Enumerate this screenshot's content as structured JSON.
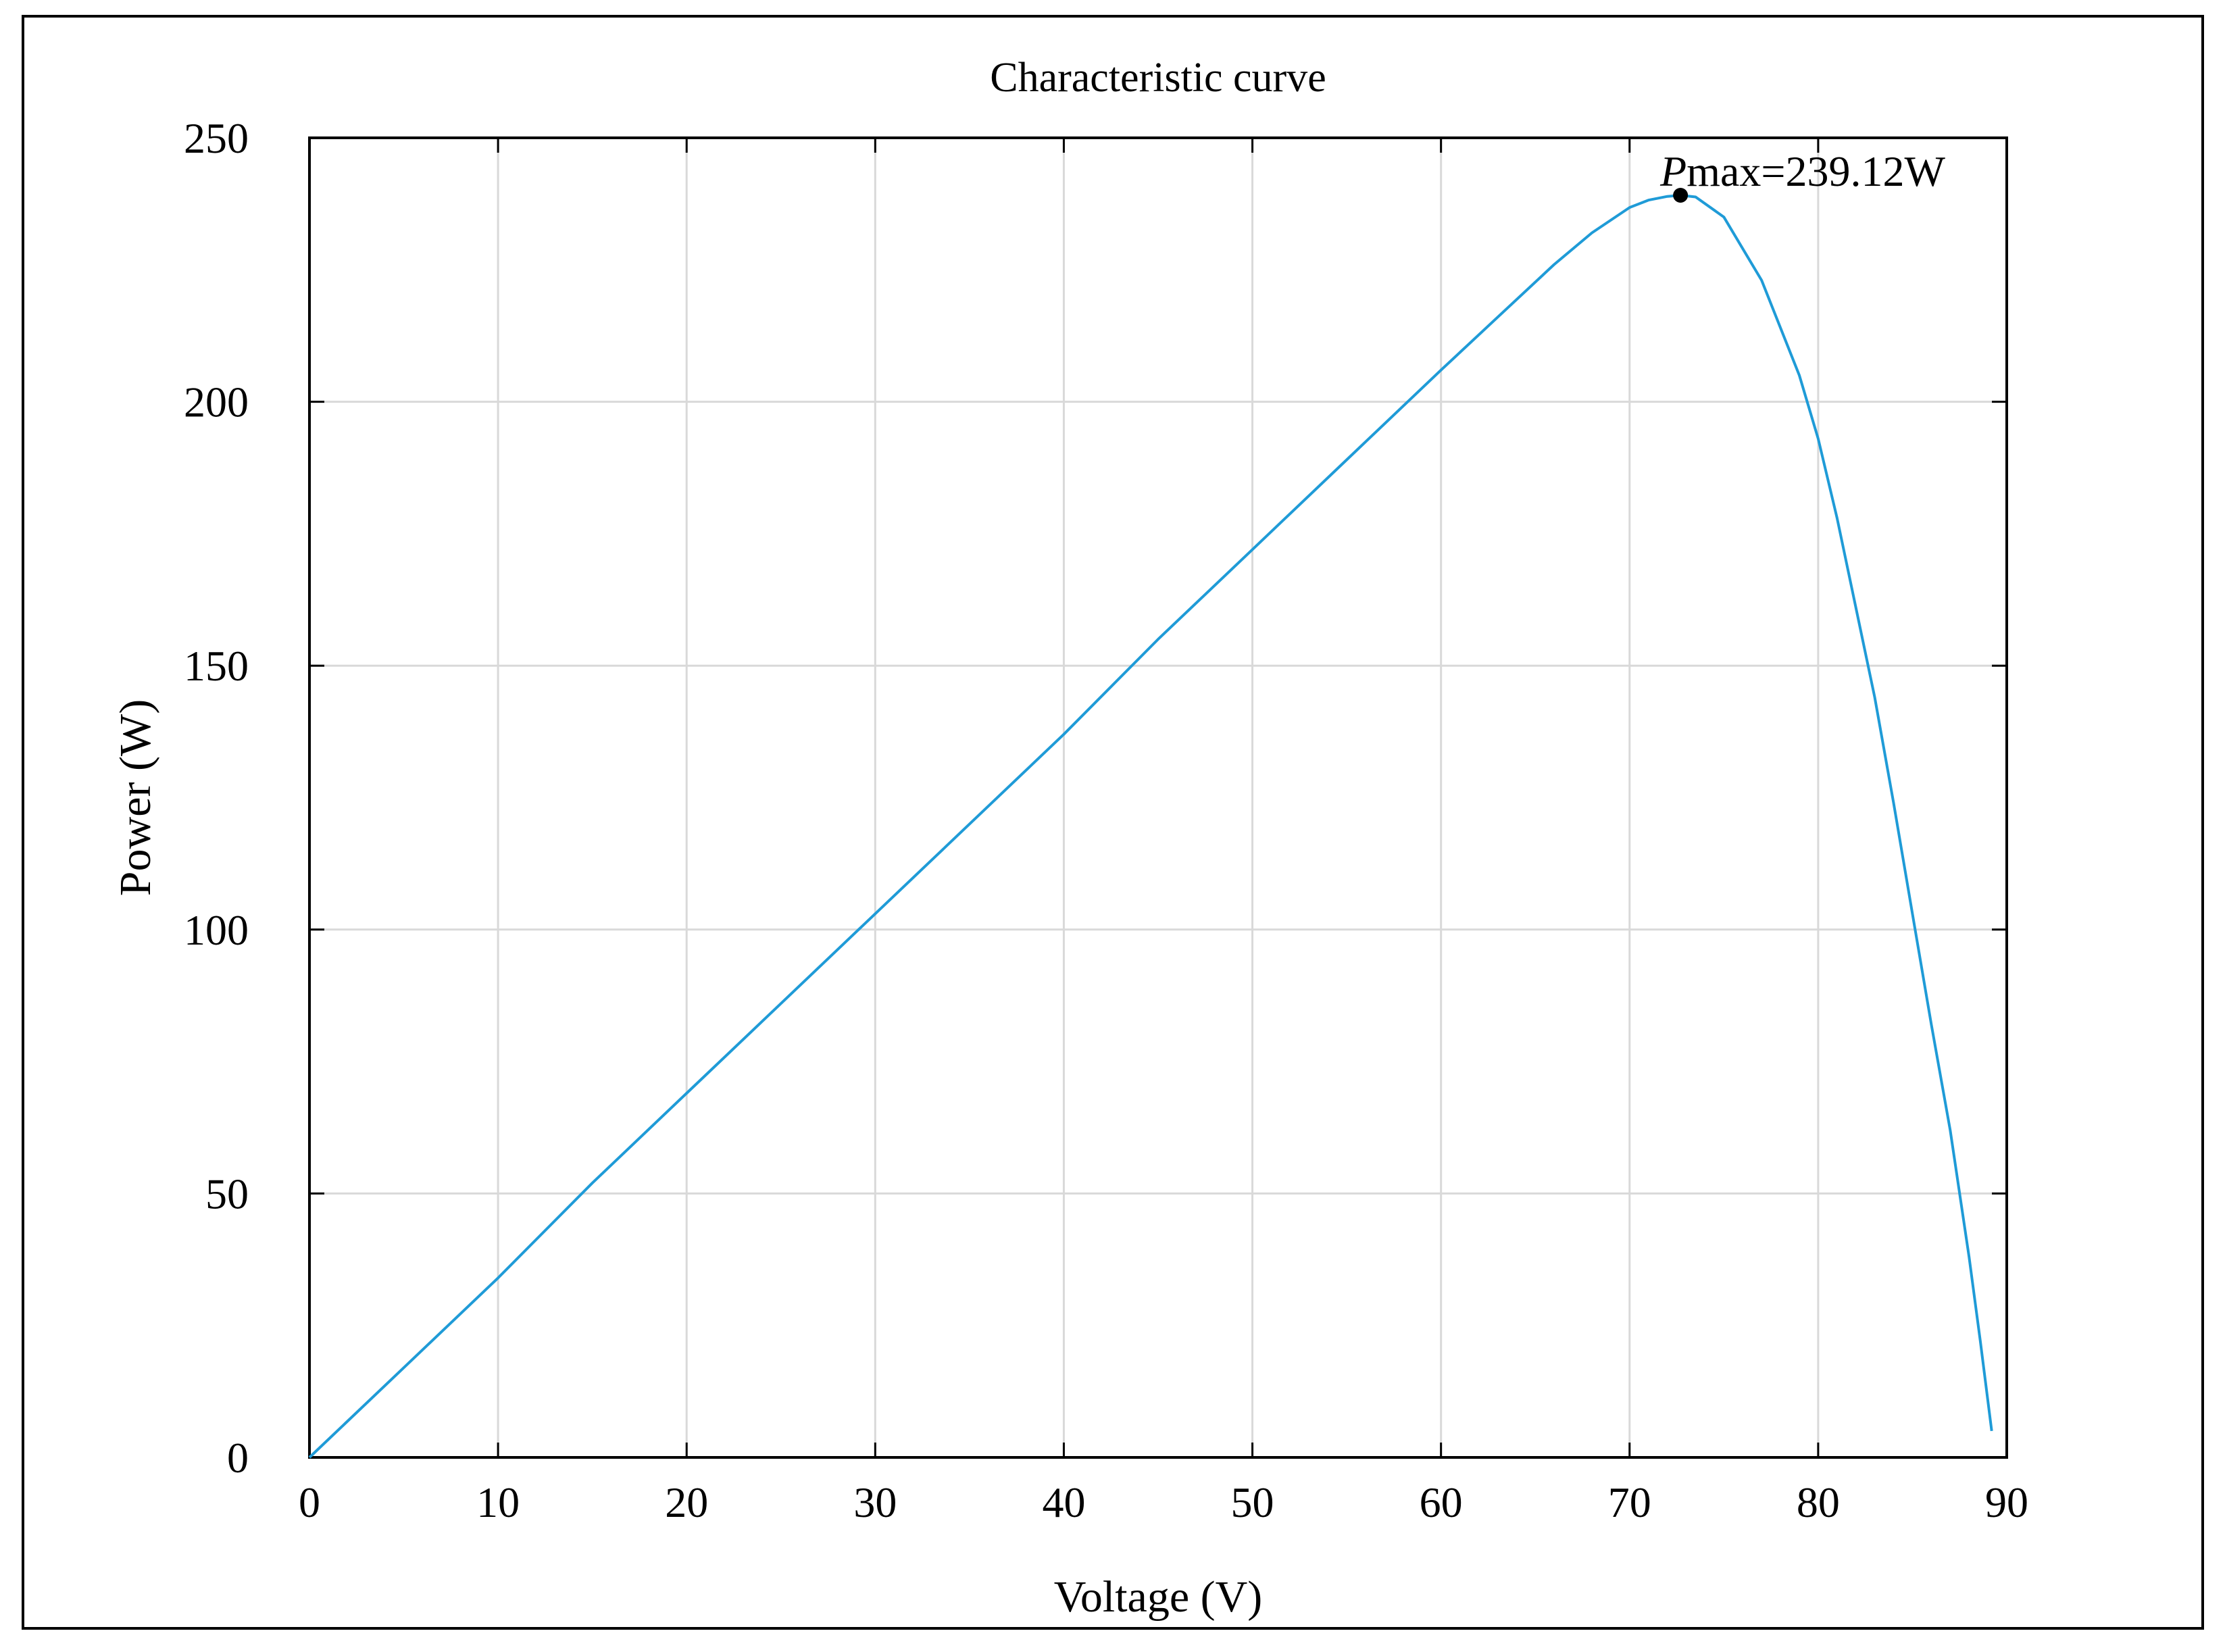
{
  "chart_data": {
    "type": "line",
    "title": "Characteristic curve",
    "xlabel": "Voltage (V)",
    "ylabel": "Power (W)",
    "xlim": [
      0,
      90
    ],
    "ylim": [
      0,
      250
    ],
    "x_ticks": [
      0,
      10,
      20,
      30,
      40,
      50,
      60,
      70,
      80,
      90
    ],
    "y_ticks": [
      0,
      50,
      100,
      150,
      200,
      250
    ],
    "x_tick_labels": [
      "0",
      "10",
      "20",
      "30",
      "40",
      "50",
      "60",
      "70",
      "80",
      "90"
    ],
    "y_tick_labels": [
      "0",
      "50",
      "100",
      "150",
      "200",
      "250"
    ],
    "grid": true,
    "series": [
      {
        "color": "#1f9bd7",
        "x": [
          0,
          5,
          10,
          15,
          20,
          25,
          30,
          35,
          40,
          45,
          50,
          55,
          60,
          63,
          66,
          68,
          70,
          71,
          72,
          72.7,
          73.5,
          75,
          77,
          79,
          80,
          81,
          82,
          83,
          84,
          85,
          86,
          87,
          88,
          88.6,
          89.2
        ],
        "y": [
          0,
          17,
          34,
          52,
          69,
          86,
          103,
          120,
          137,
          155,
          172,
          189,
          206,
          216,
          226,
          232,
          236.8,
          238.2,
          238.9,
          239.12,
          238.8,
          235,
          223,
          205,
          193,
          178,
          161,
          144,
          124,
          103,
          82,
          62,
          38,
          22,
          5
        ]
      }
    ],
    "annotation": {
      "x": 72.7,
      "y": 239.12,
      "label_italic": "P",
      "label_rest": "max=239.12W"
    }
  }
}
